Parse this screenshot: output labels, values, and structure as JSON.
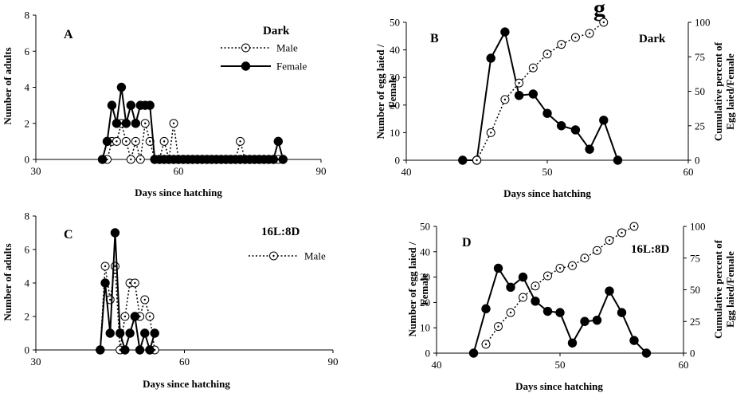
{
  "figure": {
    "headline": "g"
  },
  "chart_data": [
    {
      "id": "A",
      "type": "line",
      "panel_letter": "A",
      "condition": "Dark",
      "xlabel": "Days since hatching",
      "ylabel": "Number of adults",
      "xlim": [
        30,
        90
      ],
      "xticks": [
        30,
        60,
        90
      ],
      "ylim": [
        0,
        8
      ],
      "yticks": [
        0,
        2,
        4,
        6,
        8
      ],
      "legend_position": "top-right",
      "series": [
        {
          "name": "Male",
          "style": "dotted-open",
          "x": [
            44,
            45,
            46,
            47,
            48,
            49,
            50,
            51,
            52,
            53,
            54,
            55,
            56,
            57,
            58,
            59,
            60,
            61,
            62,
            63,
            64,
            65,
            66,
            67,
            68,
            69,
            70,
            71,
            72,
            73,
            74,
            75,
            76,
            77,
            78,
            79,
            80,
            81,
            82
          ],
          "y": [
            0,
            0,
            1,
            1,
            2,
            1,
            0,
            1,
            0,
            2,
            1,
            0,
            0,
            1,
            0,
            2,
            0,
            0,
            0,
            0,
            0,
            0,
            0,
            0,
            0,
            0,
            0,
            0,
            0,
            1,
            0,
            0,
            0,
            0,
            0,
            0,
            0,
            0,
            0
          ]
        },
        {
          "name": "Female",
          "style": "solid-filled",
          "x": [
            44,
            45,
            46,
            47,
            48,
            49,
            50,
            51,
            52,
            53,
            54,
            55,
            56,
            57,
            58,
            59,
            60,
            61,
            62,
            63,
            64,
            65,
            66,
            67,
            68,
            69,
            70,
            71,
            72,
            73,
            74,
            75,
            76,
            77,
            78,
            79,
            80,
            81,
            82
          ],
          "y": [
            0,
            1,
            3,
            2,
            4,
            2,
            3,
            2,
            3,
            3,
            3,
            0,
            0,
            0,
            0,
            0,
            0,
            0,
            0,
            0,
            0,
            0,
            0,
            0,
            0,
            0,
            0,
            0,
            0,
            0,
            0,
            0,
            0,
            0,
            0,
            0,
            0,
            1,
            0
          ]
        }
      ]
    },
    {
      "id": "B",
      "type": "line",
      "panel_letter": "B",
      "condition": "Dark",
      "xlabel": "Days since hatching",
      "ylabel_lines": [
        "Number of egg laied /",
        "Female"
      ],
      "y2label_lines": [
        "Cumulative percent of",
        "Egg laied/Female"
      ],
      "xlim": [
        40,
        60
      ],
      "xticks": [
        40,
        50,
        60
      ],
      "ylim": [
        0,
        50
      ],
      "yticks": [
        0,
        10,
        20,
        30,
        40,
        50
      ],
      "y2lim": [
        0,
        100
      ],
      "y2ticks": [
        0,
        25,
        50,
        75,
        100
      ],
      "series": [
        {
          "name": "",
          "axis": "left",
          "style": "solid-filled",
          "x": [
            44,
            45,
            46,
            47,
            48,
            49,
            50,
            51,
            52,
            53,
            54,
            55
          ],
          "y": [
            0,
            0,
            37,
            46.5,
            23.5,
            24,
            17,
            12.5,
            11,
            4,
            14.5,
            0
          ]
        },
        {
          "name": "",
          "axis": "right",
          "style": "dotted-open",
          "x": [
            45,
            46,
            47,
            48,
            49,
            50,
            51,
            52,
            53,
            54
          ],
          "y": [
            0,
            20,
            44,
            56,
            67,
            77,
            84,
            89,
            92,
            100
          ]
        }
      ]
    },
    {
      "id": "C",
      "type": "line",
      "panel_letter": "C",
      "condition": "16L:8D",
      "xlabel": "Days since hatching",
      "ylabel": "Number of adults",
      "xlim": [
        30,
        90
      ],
      "xticks": [
        30,
        60,
        90
      ],
      "ylim": [
        0,
        8
      ],
      "yticks": [
        0,
        2,
        4,
        6,
        8
      ],
      "legend_position": "top-right",
      "series": [
        {
          "name": "Male",
          "style": "dotted-open",
          "x": [
            43,
            44,
            45,
            46,
            47,
            48,
            49,
            50,
            51,
            52,
            53,
            54
          ],
          "y": [
            0,
            5,
            3,
            5,
            0,
            2,
            4,
            4,
            2,
            3,
            2,
            0
          ]
        },
        {
          "name": "",
          "style": "solid-filled",
          "x": [
            43,
            44,
            45,
            46,
            47,
            48,
            49,
            50,
            51,
            52,
            53,
            54
          ],
          "y": [
            0,
            4,
            1,
            7,
            1,
            0,
            1,
            2,
            0,
            1,
            0,
            1
          ]
        }
      ]
    },
    {
      "id": "D",
      "type": "line",
      "panel_letter": "D",
      "condition": "16L:8D",
      "xlabel": "Days since hatching",
      "ylabel_lines": [
        "Number of egg laied /",
        "Female"
      ],
      "y2label_lines": [
        "Cumulative percent of",
        "Egg laied/Female"
      ],
      "xlim": [
        40,
        60
      ],
      "xticks": [
        40,
        50,
        60
      ],
      "ylim": [
        0,
        50
      ],
      "yticks": [
        0,
        10,
        20,
        30,
        40,
        50
      ],
      "y2lim": [
        0,
        100
      ],
      "y2ticks": [
        0,
        25,
        50,
        75,
        100
      ],
      "series": [
        {
          "name": "",
          "axis": "left",
          "style": "solid-filled",
          "x": [
            43,
            44,
            45,
            46,
            47,
            48,
            49,
            50,
            51,
            52,
            53,
            54,
            55,
            56,
            57
          ],
          "y": [
            0,
            17.5,
            33.5,
            26,
            30,
            20.5,
            16.5,
            16,
            4,
            12.5,
            13,
            24.5,
            16,
            5,
            0
          ]
        },
        {
          "name": "",
          "axis": "right",
          "style": "dotted-open",
          "x": [
            44,
            45,
            46,
            47,
            48,
            49,
            50,
            51,
            52,
            53,
            54,
            55,
            56
          ],
          "y": [
            7,
            21,
            32,
            44,
            53,
            61,
            67,
            69,
            75,
            81,
            89,
            95,
            100
          ]
        }
      ]
    }
  ]
}
